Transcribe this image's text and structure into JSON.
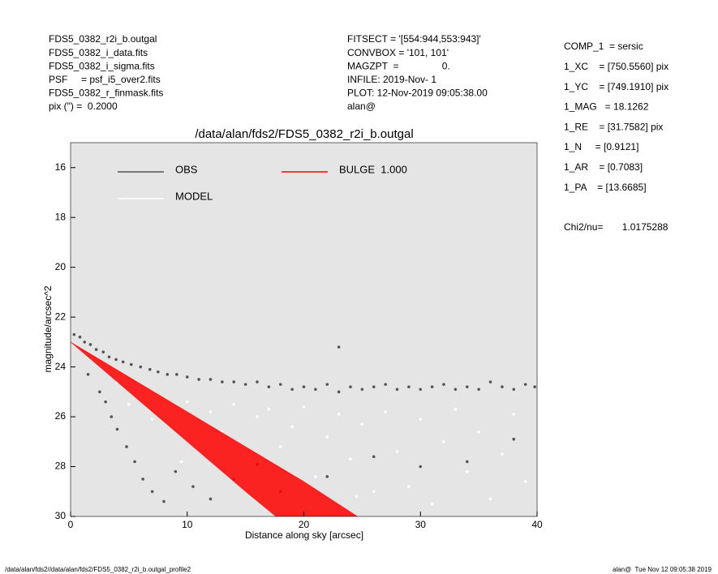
{
  "header": {
    "left": [
      "FDS5_0382_r2i_b.outgal",
      "FDS5_0382_i_data.fits",
      "FDS5_0382_i_sigma.fits",
      "PSF     = psf_i5_over2.fits",
      "FDS5_0382_r_finmask.fits",
      "pix (\") =  0.2000"
    ],
    "middle": [
      "FITSECT = '[554:944,553:943]'",
      "CONVBOX = '101, 101'",
      "MAGZPT  =                0.",
      "INFILE: 2019-Nov- 1",
      "PLOT: 12-Nov-2019 09:05:38.00",
      "alan@"
    ],
    "right": [
      "COMP_1  = sersic",
      "1_XC    = [750.5560] pix",
      "1_YC    = [749.1910] pix",
      "1_MAG   = 18.1262",
      "1_RE    = [31.7582] pix",
      "1_N     = [0.9121]",
      "1_AR    = [0.7083]",
      "1_PA    = [13.6685]"
    ],
    "chi2": "Chi2/nu=       1.0175288"
  },
  "footer": {
    "left": "/data/alan/fds2//data/alan/fds2/FDS5_0382_r2i_b.outgal_profile2",
    "right": "alan@  Tue Nov 12 09:05:38 2019"
  },
  "chart_data": {
    "type": "scatter",
    "title": "/data/alan/fds2/FDS5_0382_r2i_b.outgal",
    "xlabel": "Distance along sky [arcsec]",
    "ylabel": "magnitude/arcsec^2",
    "xlim": [
      0,
      40
    ],
    "ylim": [
      30,
      15
    ],
    "xticks": [
      0,
      10,
      20,
      30,
      40
    ],
    "yticks": [
      16,
      18,
      20,
      22,
      24,
      26,
      28,
      30
    ],
    "background": "#e5e5e5",
    "series": [
      {
        "name": "OBS",
        "color": "#555555",
        "x": [
          0.3,
          0.8,
          1.2,
          1.7,
          2.2,
          2.8,
          3.3,
          3.9,
          4.5,
          5.2,
          6,
          6.8,
          7.5,
          8.3,
          9.1,
          10,
          11,
          12,
          13,
          14,
          15,
          16,
          17,
          18,
          19,
          20,
          21,
          22,
          23,
          24,
          25,
          26,
          27,
          28,
          29,
          30,
          31,
          32,
          33,
          34,
          35,
          36,
          37,
          38,
          39,
          39.8,
          1.5,
          2.5,
          3,
          3.5,
          4,
          4.8,
          5.5,
          6.2,
          7,
          8,
          9,
          10.5,
          12,
          14,
          16,
          18,
          22,
          26,
          30,
          34,
          38,
          23
        ],
        "values": [
          22.7,
          22.8,
          23.0,
          23.1,
          23.3,
          23.4,
          23.6,
          23.7,
          23.8,
          23.9,
          24.0,
          24.1,
          24.2,
          24.3,
          24.3,
          24.4,
          24.5,
          24.5,
          24.6,
          24.6,
          24.7,
          24.6,
          24.8,
          24.7,
          24.9,
          24.8,
          24.9,
          24.7,
          25.0,
          24.8,
          24.9,
          24.8,
          24.7,
          24.9,
          24.8,
          24.9,
          24.8,
          24.7,
          24.9,
          24.8,
          24.9,
          24.6,
          24.8,
          24.9,
          24.7,
          24.8,
          24.3,
          25.0,
          25.4,
          26.0,
          26.5,
          27.2,
          27.8,
          28.5,
          29.0,
          29.4,
          28.2,
          28.8,
          29.3,
          28.5,
          27.9,
          29.0,
          28.4,
          27.6,
          28.0,
          27.8,
          26.9,
          23.2
        ]
      },
      {
        "name": "MODEL",
        "color": "#ffffff",
        "x": [
          4,
          5,
          6,
          7,
          8,
          9,
          10,
          11,
          12,
          13,
          14,
          15,
          16,
          17,
          18,
          19,
          20,
          21,
          22,
          23,
          24,
          25,
          26,
          27,
          28,
          29,
          30,
          31,
          32,
          33,
          34,
          35,
          36,
          37,
          38,
          39,
          20.5,
          24.5,
          13.5,
          9.5
        ],
        "values": [
          24.6,
          25.5,
          25.2,
          26.1,
          25.6,
          26.4,
          25.4,
          27.0,
          25.8,
          26.6,
          25.5,
          27.5,
          26.0,
          25.7,
          27.2,
          26.4,
          25.6,
          28.4,
          26.8,
          25.9,
          27.7,
          26.3,
          29.0,
          25.8,
          27.4,
          28.8,
          26.1,
          29.5,
          27.0,
          25.7,
          28.2,
          26.6,
          29.3,
          27.5,
          25.9,
          28.6,
          29.6,
          29.2,
          28.3,
          27.8
        ]
      },
      {
        "name": "BULGE  1.000",
        "color": "#ff0000",
        "x": [
          0,
          5,
          10,
          15,
          17.6
        ],
        "values": [
          23.0,
          25.0,
          27.0,
          29.0,
          30.0
        ],
        "x_outer": [
          0,
          5,
          10,
          15,
          20,
          24.6
        ],
        "values_outer": [
          23.0,
          24.4,
          25.8,
          27.2,
          28.6,
          30.0
        ]
      }
    ]
  }
}
